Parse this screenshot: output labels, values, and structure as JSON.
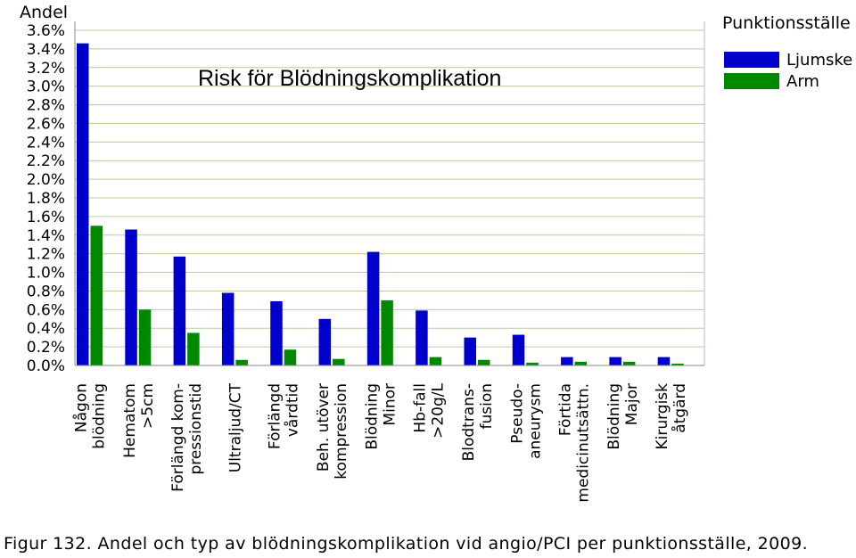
{
  "chart_data": {
    "type": "bar",
    "title": "Risk för Blödningskomplikation",
    "ylabel": "Andel",
    "ylim": [
      0,
      3.6
    ],
    "yticks": [
      "0.0%",
      "0.2%",
      "0.4%",
      "0.6%",
      "0.8%",
      "1.0%",
      "1.2%",
      "1.4%",
      "1.6%",
      "1.8%",
      "2.0%",
      "2.2%",
      "2.4%",
      "2.6%",
      "2.8%",
      "3.0%",
      "3.2%",
      "3.4%",
      "3.6%"
    ],
    "grid": true,
    "legend_title": "Punktionsställe",
    "legend_position": "top-right",
    "categories": [
      [
        "Någon",
        "blödning"
      ],
      [
        "Hematom",
        ">5cm"
      ],
      [
        "Förlängd kom-",
        "pressionstid"
      ],
      [
        "Ultraljud/CT"
      ],
      [
        "Förlängd",
        "vårdtid"
      ],
      [
        "Beh. utöver",
        "kompression"
      ],
      [
        "Blödning",
        "Minor"
      ],
      [
        "Hb-fall",
        ">20g/L"
      ],
      [
        "Blodtrans-",
        "fusion"
      ],
      [
        "Pseudo-",
        "aneurysm"
      ],
      [
        "Förtida",
        "medicinutsättn."
      ],
      [
        "Blödning",
        "Major"
      ],
      [
        "Kirurgisk",
        "åtgärd"
      ]
    ],
    "series": [
      {
        "name": "Ljumske",
        "color": "#0000cc",
        "values": [
          3.46,
          1.46,
          1.17,
          0.78,
          0.69,
          0.5,
          1.22,
          0.59,
          0.3,
          0.33,
          0.09,
          0.09,
          0.09
        ]
      },
      {
        "name": "Arm",
        "color": "#008800",
        "values": [
          1.5,
          0.6,
          0.35,
          0.06,
          0.17,
          0.07,
          0.7,
          0.09,
          0.06,
          0.03,
          0.04,
          0.04,
          0.02
        ]
      }
    ]
  },
  "caption": "Figur 132. Andel och typ av blödningskomplikation vid angio/PCI per punktionsställe, 2009."
}
